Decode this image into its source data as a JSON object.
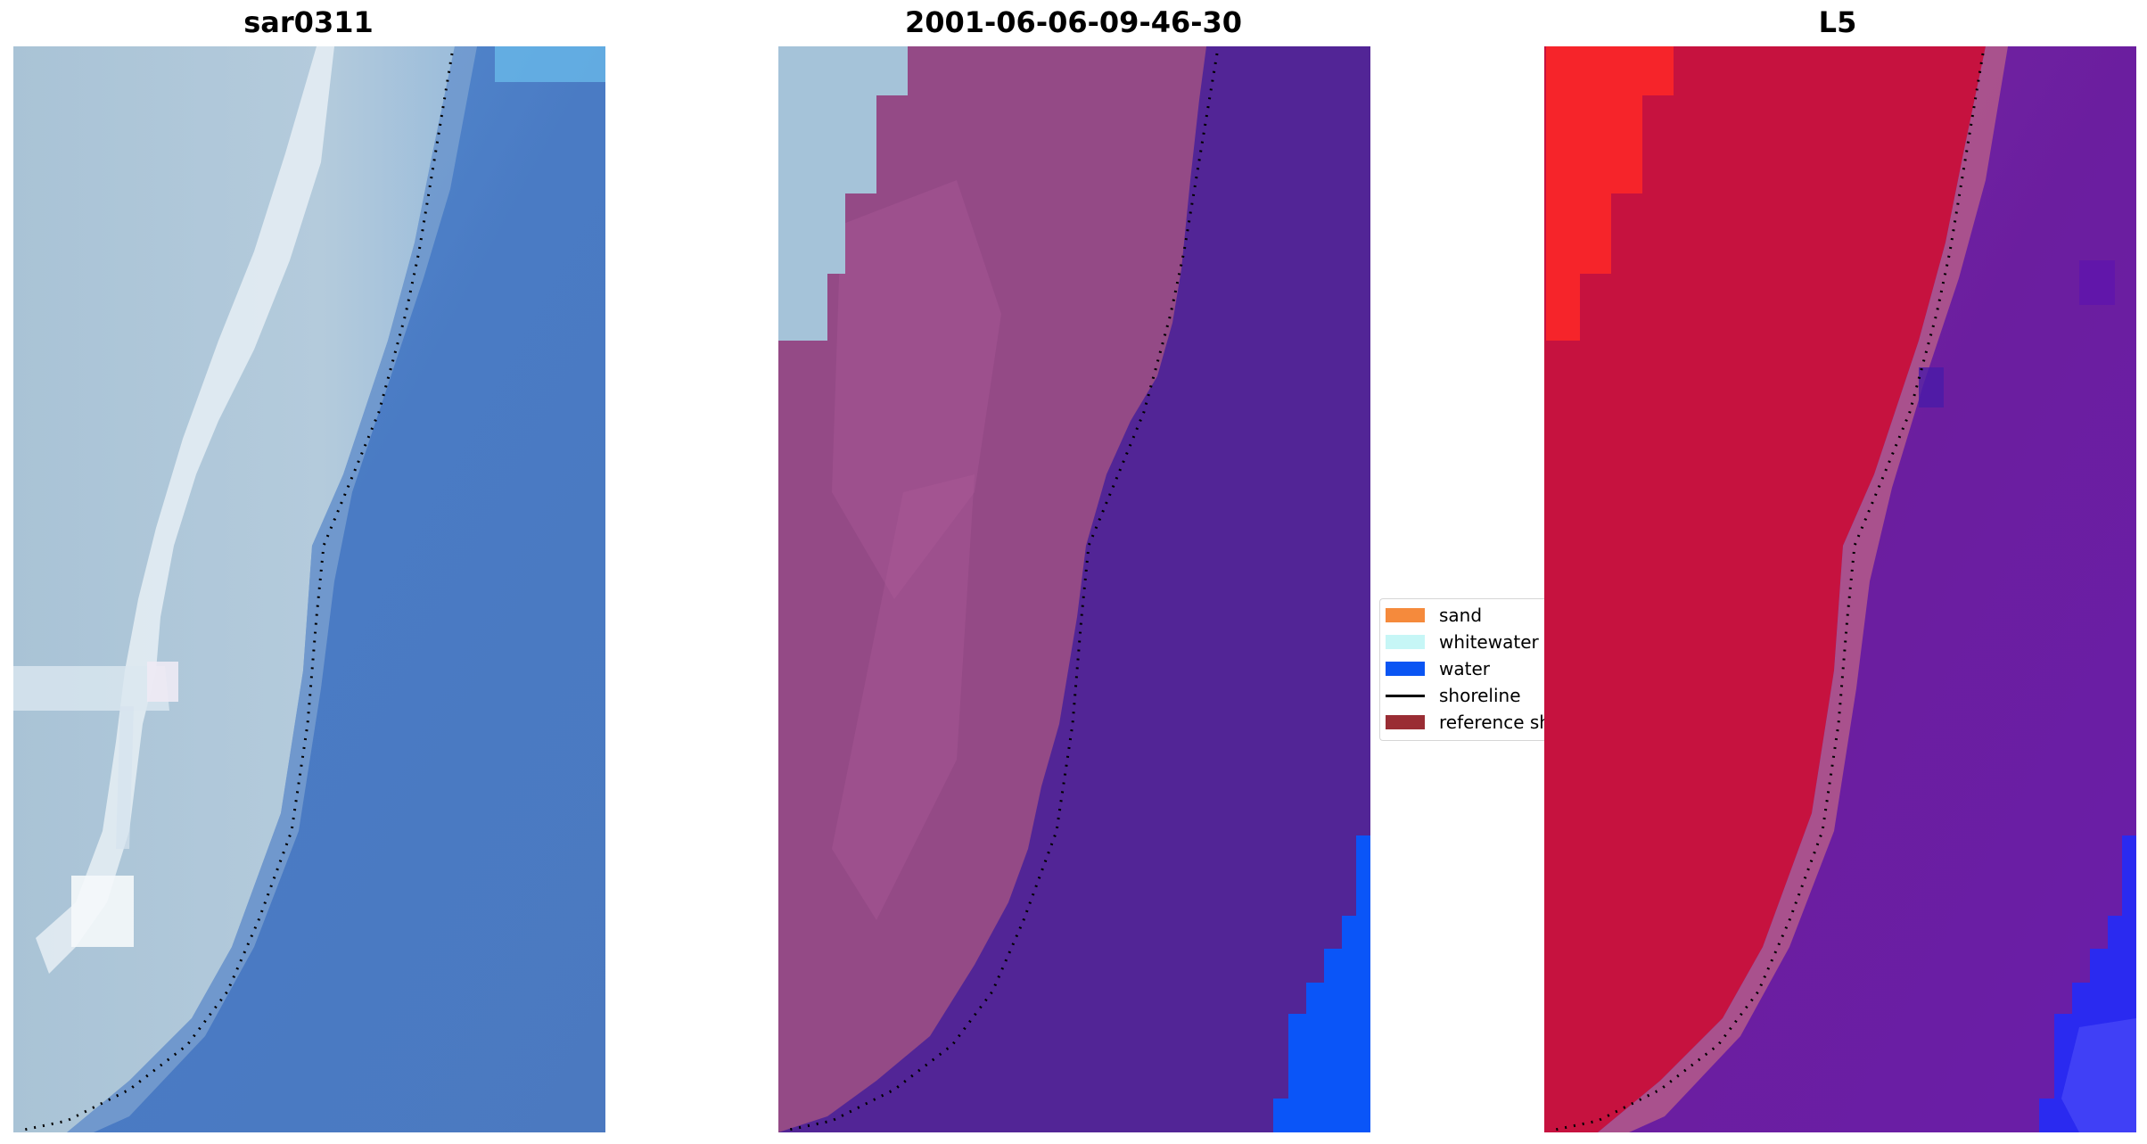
{
  "panels": [
    {
      "title": "sar0311"
    },
    {
      "title": "2001-06-06-09-46-30"
    },
    {
      "title": "L5"
    }
  ],
  "legend": {
    "items": [
      {
        "label": "sand",
        "kind": "patch",
        "color": "#f58a3c"
      },
      {
        "label": "whitewater",
        "kind": "patch",
        "color": "#c6f6f6"
      },
      {
        "label": "water",
        "kind": "patch",
        "color": "#0a55f3"
      },
      {
        "label": "shoreline",
        "kind": "line",
        "color": "#000000"
      },
      {
        "label": "reference shoreline",
        "kind": "patch",
        "color": "#9a2d34"
      }
    ]
  },
  "colors": {
    "rgb_water": "#4a7bc4",
    "rgb_land": "#a8c2d4",
    "classified_land": "#944a86",
    "classified_water": "#522596",
    "classified_whitewater": "#a5c3d9",
    "classified_water_pure": "#0a55f8",
    "mndwi_land": "#c6123f",
    "mndwi_water": "#6b1e9f"
  }
}
